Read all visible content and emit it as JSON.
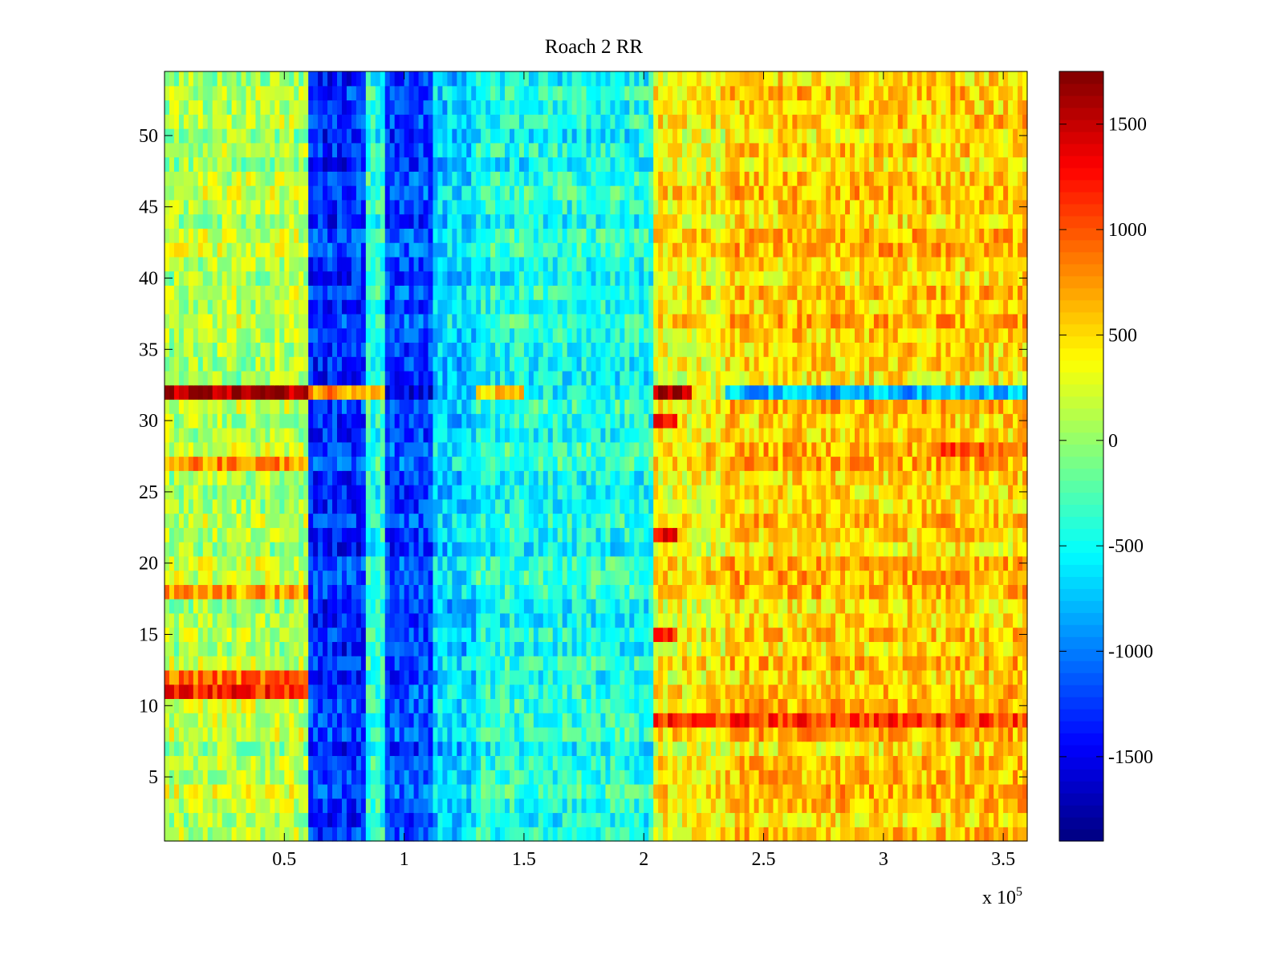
{
  "chart_data": {
    "type": "heatmap",
    "title": "Roach 2 RR",
    "xlabel": "",
    "ylabel": "",
    "x_exponent_label": "x 10",
    "x_exponent_power": "5",
    "xlim": [
      0,
      3.6
    ],
    "ylim": [
      0.5,
      54.5
    ],
    "grid": false,
    "x_ticks": [
      0.5,
      1,
      1.5,
      2,
      2.5,
      3,
      3.5
    ],
    "x_tick_labels": [
      "0.5",
      "1",
      "1.5",
      "2",
      "2.5",
      "3",
      "3.5"
    ],
    "y_ticks": [
      5,
      10,
      15,
      20,
      25,
      30,
      35,
      40,
      45,
      50
    ],
    "y_tick_labels": [
      "5",
      "10",
      "15",
      "20",
      "25",
      "30",
      "35",
      "40",
      "45",
      "50"
    ],
    "rows": 54,
    "colorbar": {
      "colormap": "jet",
      "clim": [
        -1900,
        1750
      ],
      "ticks": [
        -1500,
        -1000,
        -500,
        0,
        500,
        1000,
        1500
      ],
      "tick_labels": [
        "-1500",
        "-1000",
        "-500",
        "0",
        "500",
        "1000",
        "1500"
      ]
    },
    "x_bands": [
      {
        "x_start": 0.0,
        "x_end": 0.6,
        "level": 100
      },
      {
        "x_start": 0.6,
        "x_end": 0.84,
        "level": -1300
      },
      {
        "x_start": 0.84,
        "x_end": 0.93,
        "level": -400
      },
      {
        "x_start": 0.93,
        "x_end": 1.12,
        "level": -1200
      },
      {
        "x_start": 1.12,
        "x_end": 1.3,
        "level": -700
      },
      {
        "x_start": 1.3,
        "x_end": 2.05,
        "level": -450
      },
      {
        "x_start": 2.05,
        "x_end": 2.35,
        "level": 400
      },
      {
        "x_start": 2.35,
        "x_end": 3.6,
        "level": 550
      }
    ],
    "row_features": [
      {
        "row": 32,
        "x_start": 0.0,
        "x_end": 0.6,
        "level": 1650
      },
      {
        "row": 32,
        "x_start": 0.6,
        "x_end": 0.93,
        "level": 800
      },
      {
        "row": 32,
        "x_start": 0.93,
        "x_end": 1.12,
        "level": -1500
      },
      {
        "row": 32,
        "x_start": 1.3,
        "x_end": 1.5,
        "level": 500
      },
      {
        "row": 32,
        "x_start": 2.05,
        "x_end": 2.2,
        "level": 1500
      },
      {
        "row": 32,
        "x_start": 2.35,
        "x_end": 3.6,
        "level": -800
      },
      {
        "row": 11,
        "x_start": 0.0,
        "x_end": 0.6,
        "level": 1200
      },
      {
        "row": 12,
        "x_start": 0.0,
        "x_end": 0.6,
        "level": 900
      },
      {
        "row": 27,
        "x_start": 0.0,
        "x_end": 0.6,
        "level": 800
      },
      {
        "row": 18,
        "x_start": 0.0,
        "x_end": 0.6,
        "level": 700
      },
      {
        "row": 9,
        "x_start": 2.05,
        "x_end": 3.6,
        "level": 1100
      },
      {
        "row": 28,
        "x_start": 3.2,
        "x_end": 3.6,
        "level": 1000
      },
      {
        "row": 15,
        "x_start": 2.05,
        "x_end": 2.15,
        "level": 1300
      },
      {
        "row": 22,
        "x_start": 2.05,
        "x_end": 2.15,
        "level": 1200
      },
      {
        "row": 30,
        "x_start": 2.05,
        "x_end": 2.15,
        "level": 1300
      }
    ]
  }
}
